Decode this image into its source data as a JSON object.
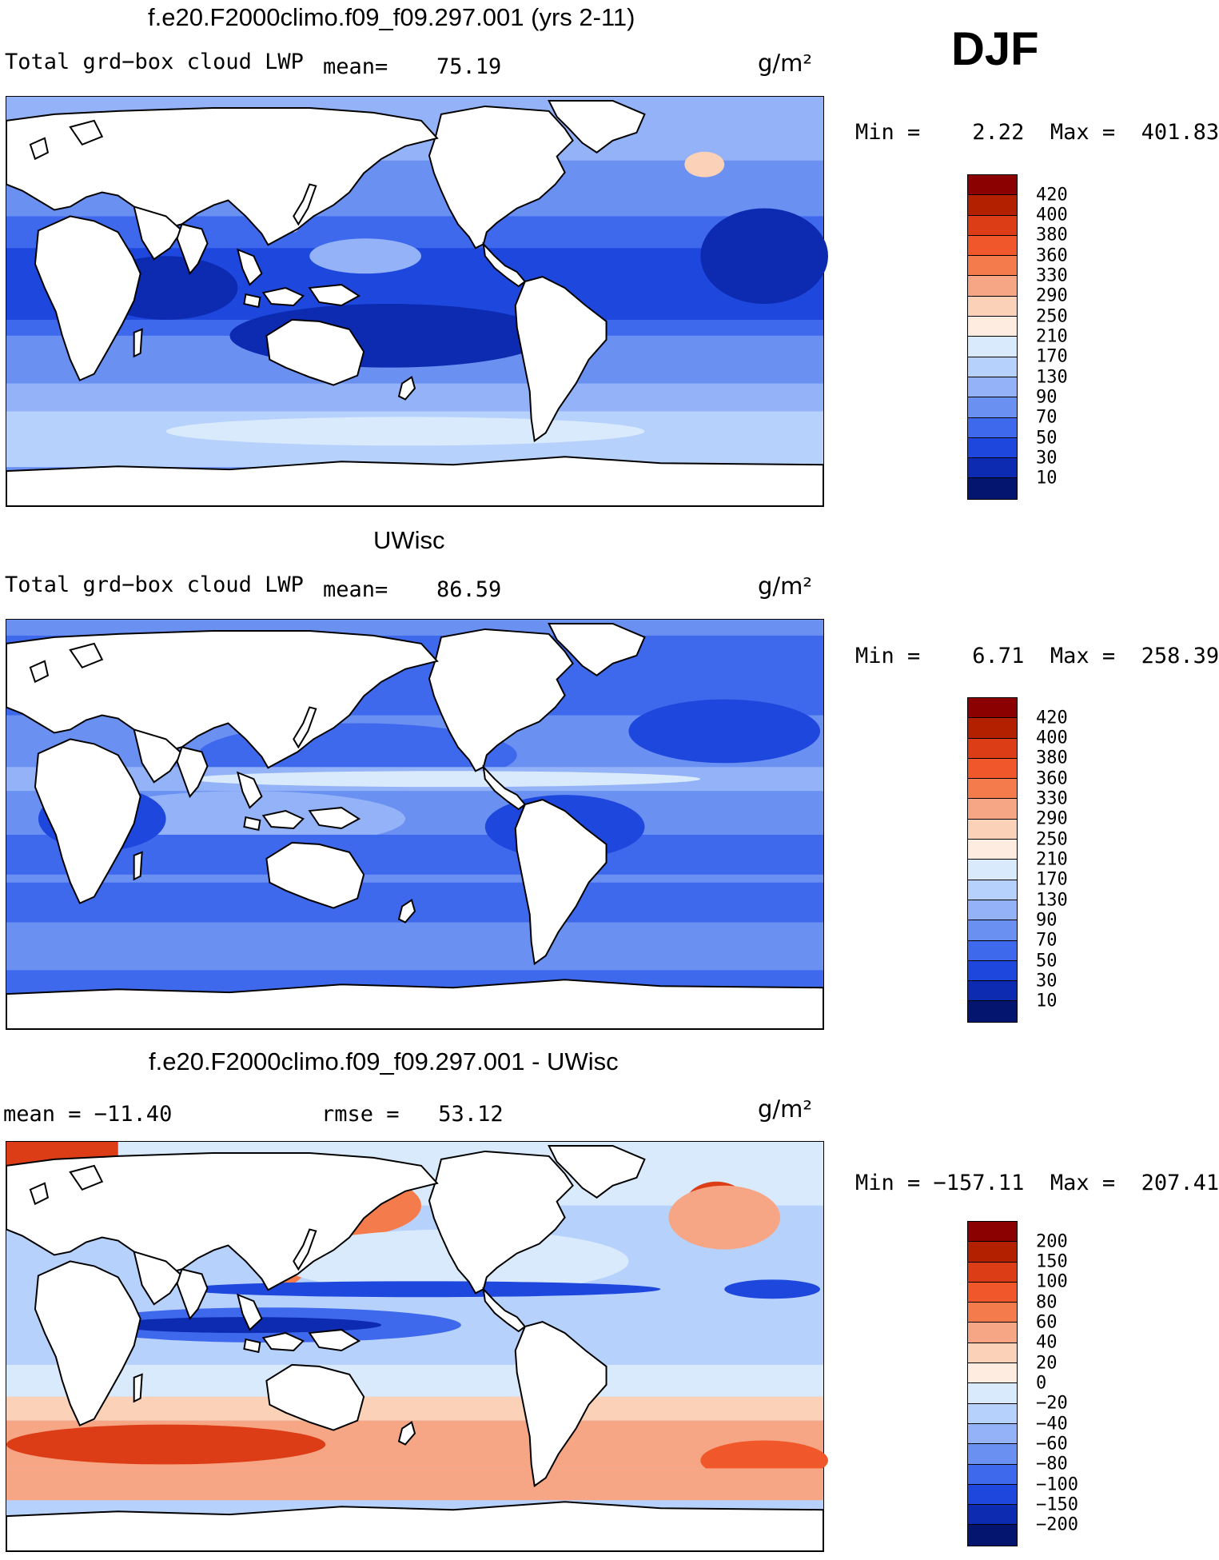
{
  "season": "DJF",
  "panels": [
    {
      "title": "f.e20.F2000climo.f09_f09.297.001 (yrs 2-11)",
      "variable": "Total grd−box cloud LWP",
      "mean_label": "mean=",
      "mean_value": "75.19",
      "units": "g/m²",
      "range_text": "Min =    2.22  Max =  401.83",
      "colorbar": {
        "ticks": [
          "420",
          "400",
          "380",
          "360",
          "330",
          "290",
          "250",
          "210",
          "170",
          "130",
          "90",
          "70",
          "50",
          "30",
          "10"
        ],
        "colors": [
          "#8b0000",
          "#b22000",
          "#dc3d16",
          "#f0572a",
          "#f47c4c",
          "#f7a685",
          "#fbd1b8",
          "#fdecdf",
          "#d9eafc",
          "#b6d1fb",
          "#93b2f7",
          "#6a90f2",
          "#3f69ec",
          "#1e47dd",
          "#0c2bb0",
          "#04156f"
        ]
      }
    },
    {
      "title": "UWisc",
      "variable": "Total grd−box cloud LWP",
      "mean_label": "mean=",
      "mean_value": "86.59",
      "units": "g/m²",
      "range_text": "Min =    6.71  Max =  258.39",
      "colorbar": {
        "ticks": [
          "420",
          "400",
          "380",
          "360",
          "330",
          "290",
          "250",
          "210",
          "170",
          "130",
          "90",
          "70",
          "50",
          "30",
          "10"
        ],
        "colors": [
          "#8b0000",
          "#b22000",
          "#dc3d16",
          "#f0572a",
          "#f47c4c",
          "#f7a685",
          "#fbd1b8",
          "#fdecdf",
          "#d9eafc",
          "#b6d1fb",
          "#93b2f7",
          "#6a90f2",
          "#3f69ec",
          "#1e47dd",
          "#0c2bb0",
          "#04156f"
        ]
      }
    },
    {
      "title": "f.e20.F2000climo.f09_f09.297.001 - UWisc",
      "mean_text": "mean = −11.40",
      "rmse_text": "rmse =   53.12",
      "units": "g/m²",
      "range_text": "Min = −157.11  Max =  207.41",
      "colorbar": {
        "ticks": [
          "200",
          "150",
          "100",
          "80",
          "60",
          "40",
          "20",
          "0",
          "−20",
          "−40",
          "−60",
          "−80",
          "−100",
          "−150",
          "−200"
        ],
        "colors": [
          "#8b0000",
          "#b22000",
          "#dc3d16",
          "#f0572a",
          "#f47c4c",
          "#f7a685",
          "#fbd1b8",
          "#fdecdf",
          "#d9eafc",
          "#b6d1fb",
          "#93b2f7",
          "#6a90f2",
          "#3f69ec",
          "#1e47dd",
          "#0c2bb0",
          "#04156f"
        ]
      }
    }
  ]
}
